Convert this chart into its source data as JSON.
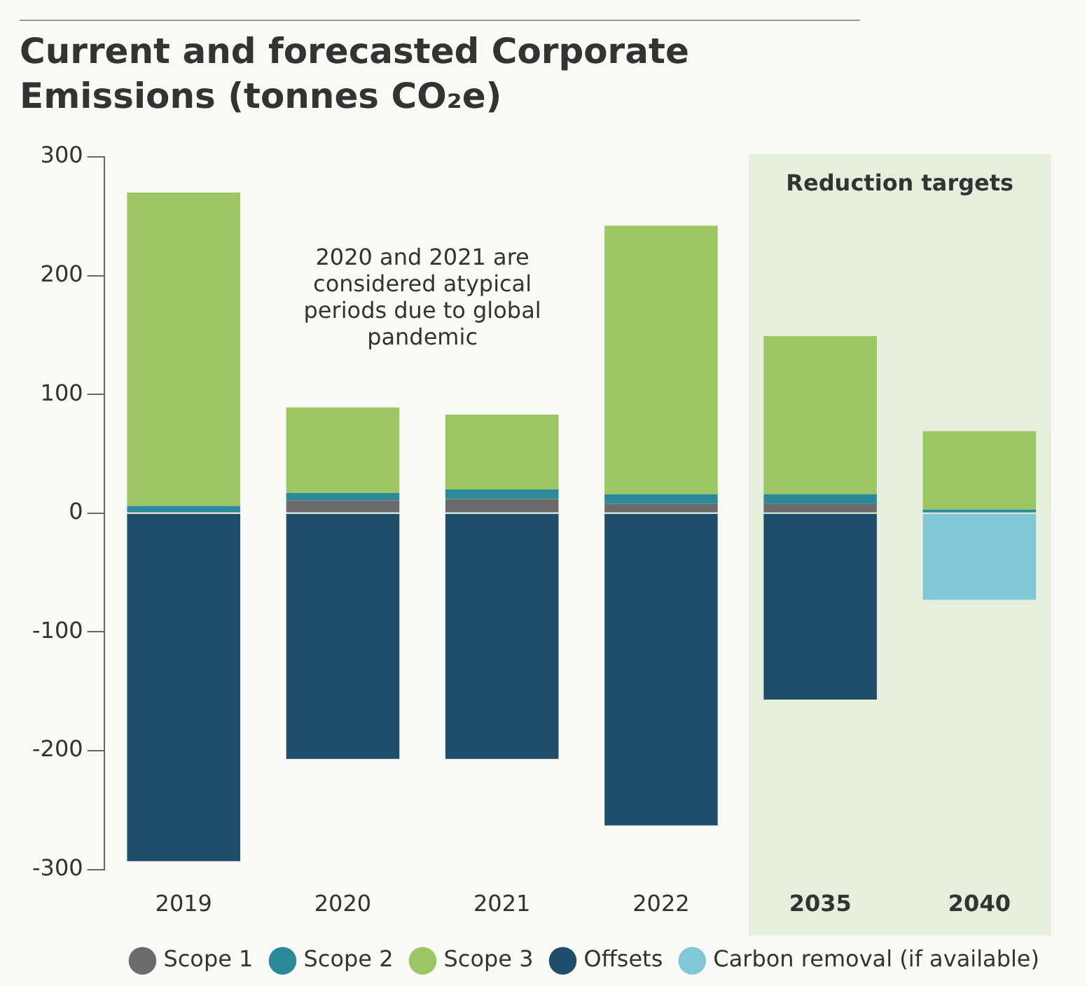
{
  "chart_data": {
    "type": "bar",
    "title": "Current and forecasted Corporate Emissions (tonnes CO₂e)",
    "categories": [
      "2019",
      "2020",
      "2021",
      "2022",
      "2035",
      "2040"
    ],
    "stacked": true,
    "series": [
      {
        "name": "Scope 1",
        "color": "#6b6b6b",
        "values": [
          1,
          11,
          12,
          8,
          8,
          0
        ]
      },
      {
        "name": "Scope 2",
        "color": "#2a8a9a",
        "values": [
          5,
          6,
          8,
          8,
          8,
          3
        ]
      },
      {
        "name": "Scope 3",
        "color": "#9bc662",
        "values": [
          264,
          72,
          63,
          226,
          133,
          66
        ]
      },
      {
        "name": "Offsets",
        "color": "#1f4e6b",
        "values": [
          -293,
          -207,
          -207,
          -263,
          -157,
          null
        ]
      },
      {
        "name": "Carbon removal (if available)",
        "color": "#80c8d6",
        "values": [
          null,
          null,
          null,
          null,
          null,
          -73
        ]
      }
    ],
    "ylim": [
      -300,
      300
    ],
    "yticks": [
      -300,
      -200,
      -100,
      0,
      100,
      200,
      300
    ],
    "grid": false,
    "legend": "bottom",
    "marker": "circle",
    "bands": [
      {
        "axis": "x",
        "from": "2035",
        "to": "2040",
        "label": "Reduction targets",
        "color": "#e6efdc"
      }
    ],
    "annotations": [
      "2020 and 2021 are considered atypical periods due to global pandemic"
    ]
  }
}
